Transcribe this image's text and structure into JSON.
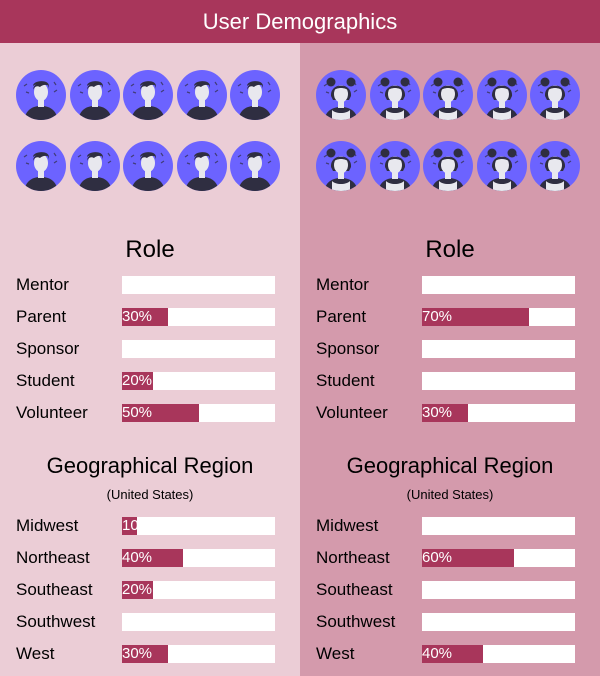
{
  "header": {
    "title": "User Demographics"
  },
  "colors": {
    "accent": "#a8365b",
    "panel_left": "#ebcdd6",
    "panel_right": "#d49aac",
    "avatar_bg": "#6c63ff",
    "figure": "#2f2e41"
  },
  "icons": {
    "male": "male-avatar-icon",
    "female": "female-avatar-icon"
  },
  "chart_data": [
    {
      "type": "bar",
      "title": "Role",
      "categories": [
        "Mentor",
        "Parent",
        "Sponsor",
        "Student",
        "Volunteer"
      ],
      "values": [
        0,
        30,
        0,
        20,
        50
      ],
      "labels": [
        "",
        "30%",
        "",
        "20%",
        "50%"
      ],
      "xlim": [
        0,
        100
      ]
    },
    {
      "type": "bar",
      "title": "Geographical Region",
      "subtitle": "(United States)",
      "categories": [
        "Midwest",
        "Northeast",
        "Southeast",
        "Southwest",
        "West"
      ],
      "values": [
        10,
        40,
        20,
        0,
        30
      ],
      "labels": [
        "10",
        "40%",
        "20%",
        "",
        "30%"
      ],
      "xlim": [
        0,
        100
      ]
    },
    {
      "type": "bar",
      "title": "Role",
      "categories": [
        "Mentor",
        "Parent",
        "Sponsor",
        "Student",
        "Volunteer"
      ],
      "values": [
        0,
        70,
        0,
        0,
        30
      ],
      "labels": [
        "",
        "70%",
        "",
        "",
        "30%"
      ],
      "xlim": [
        0,
        100
      ]
    },
    {
      "type": "bar",
      "title": "Geographical Region",
      "subtitle": "(United States)",
      "categories": [
        "Midwest",
        "Northeast",
        "Southeast",
        "Southwest",
        "West"
      ],
      "values": [
        0,
        60,
        0,
        0,
        40
      ],
      "labels": [
        "",
        "60%",
        "",
        "",
        "40%"
      ],
      "xlim": [
        0,
        100
      ]
    }
  ]
}
